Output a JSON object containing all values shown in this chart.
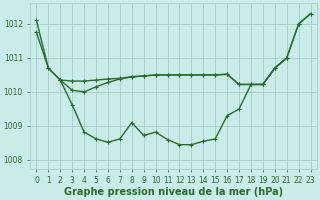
{
  "xlabel": "Graphe pression niveau de la mer (hPa)",
  "x_ticks": [
    0,
    1,
    2,
    3,
    4,
    5,
    6,
    7,
    8,
    9,
    10,
    11,
    12,
    13,
    14,
    15,
    16,
    17,
    18,
    19,
    20,
    21,
    22,
    23
  ],
  "line_uShape": {
    "x": [
      0,
      1,
      2,
      3,
      4,
      5,
      6,
      7,
      8,
      9,
      10,
      11,
      12,
      13,
      14,
      15,
      16,
      17,
      18,
      19,
      20,
      21,
      22,
      23
    ],
    "y": [
      1011.75,
      1010.7,
      1010.35,
      1009.62,
      1008.82,
      1008.62,
      1008.52,
      1008.62,
      1009.1,
      1008.72,
      1008.82,
      1008.6,
      1008.45,
      1008.45,
      1008.55,
      1008.62,
      1009.3,
      1009.5,
      1010.22,
      1010.22,
      1010.7,
      1011.0,
      1012.0,
      1012.3
    ]
  },
  "line_flat": {
    "x": [
      2,
      3,
      4,
      5,
      6,
      7,
      8,
      9,
      10,
      11,
      12,
      13,
      14,
      15,
      16,
      17,
      18,
      19,
      20,
      21
    ],
    "y": [
      1010.35,
      1010.32,
      1010.32,
      1010.35,
      1010.38,
      1010.4,
      1010.45,
      1010.47,
      1010.5,
      1010.5,
      1010.5,
      1010.5,
      1010.5,
      1010.5,
      1010.52,
      1010.22,
      1010.22,
      1010.22,
      1010.7,
      1011.0
    ]
  },
  "line_diag": {
    "x": [
      0,
      1,
      2,
      3,
      4,
      5,
      6,
      7,
      8,
      9,
      10,
      11,
      12,
      13,
      14,
      15,
      16,
      17,
      18,
      19,
      20,
      21,
      22,
      23
    ],
    "y": [
      1012.1,
      1010.7,
      1010.35,
      1010.05,
      1010.0,
      1010.15,
      1010.28,
      1010.38,
      1010.44,
      1010.47,
      1010.5,
      1010.5,
      1010.5,
      1010.5,
      1010.5,
      1010.5,
      1010.52,
      1010.22,
      1010.22,
      1010.22,
      1010.7,
      1011.0,
      1012.0,
      1012.3
    ]
  },
  "color": "#2d6a2d",
  "bg_color": "#c8ece8",
  "grid_color": "#a8ccc8",
  "ylim": [
    1007.75,
    1012.6
  ],
  "yticks": [
    1008,
    1009,
    1010,
    1011,
    1012
  ],
  "marker": "+",
  "markersize": 3.5,
  "linewidth": 1.0,
  "xlabel_fontsize": 7,
  "tick_fontsize": 5.5
}
